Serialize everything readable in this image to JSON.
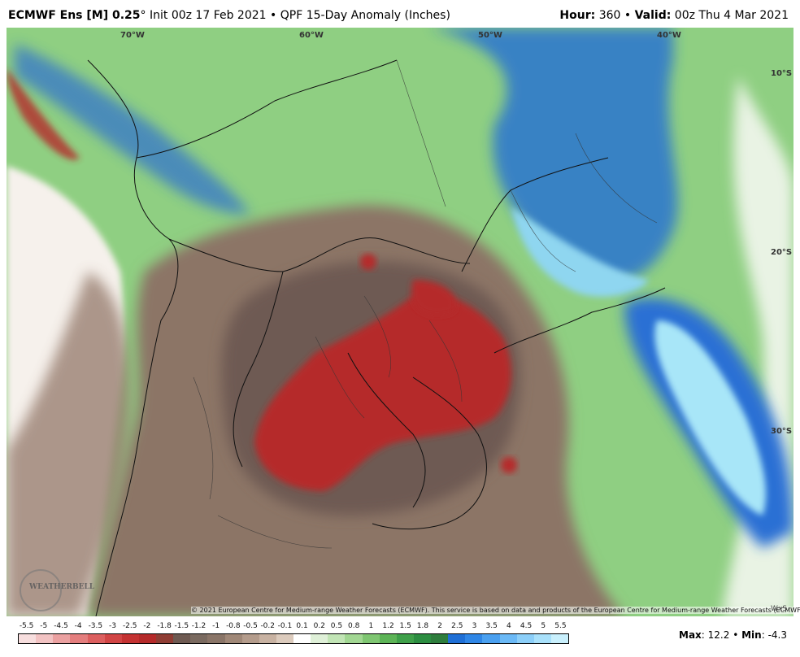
{
  "header": {
    "model": "ECMWF Ens [M] 0.25",
    "degree": "°",
    "init_text": "Init 00z 17 Feb 2021",
    "bullet": "•",
    "product": "QPF 15-Day Anomaly (Inches)",
    "hour_label": "Hour:",
    "hour_value": "360",
    "valid_label": "Valid:",
    "valid_value": "00z Thu 4 Mar 2021"
  },
  "map": {
    "lon_labels": [
      "70°W",
      "60°W",
      "50°W",
      "40°W"
    ],
    "lat_labels": [
      "10°S",
      "20°S",
      "30°S"
    ],
    "copyright": "© 2021 European Centre for Medium-range Weather Forecasts (ECMWF). This service is based on data and products of the European Centre for Medium-range Weather Forecasts (ECMWF).",
    "logo_text": "WEATHERBELL",
    "watermark": "WxS"
  },
  "legend": {
    "ticks": [
      "-5.5",
      "-5",
      "-4.5",
      "-4",
      "-3.5",
      "-3",
      "-2.5",
      "-2",
      "-1.8",
      "-1.5",
      "-1.2",
      "-1",
      "-0.8",
      "-0.5",
      "-0.2",
      "-0.1",
      "0.1",
      "0.2",
      "0.5",
      "0.8",
      "1",
      "1.2",
      "1.5",
      "1.8",
      "2",
      "2.5",
      "3",
      "3.5",
      "4",
      "4.5",
      "5",
      "5.5"
    ],
    "colors": [
      "#f7dede",
      "#f2c3c3",
      "#eba1a1",
      "#e47e7e",
      "#dc5f5f",
      "#d14545",
      "#c43232",
      "#b52a2a",
      "#8f3d34",
      "#6e5a52",
      "#7a6a60",
      "#8a7568",
      "#a08878",
      "#b49c8c",
      "#c8b2a2",
      "#dccbbd",
      "#ffffff",
      "#dff0d8",
      "#c2e5b6",
      "#a2d793",
      "#7fc672",
      "#5db457",
      "#3fa04a",
      "#2c8d41",
      "#2e7d3d",
      "#1f6fd6",
      "#2f86e6",
      "#4aa0f0",
      "#6bb9f6",
      "#8ccff9",
      "#a9e1fb",
      "#c9f0fd"
    ]
  },
  "stats": {
    "max_label": "Max",
    "max_value": "12.2",
    "min_label": "Min",
    "min_value": "-4.3"
  }
}
